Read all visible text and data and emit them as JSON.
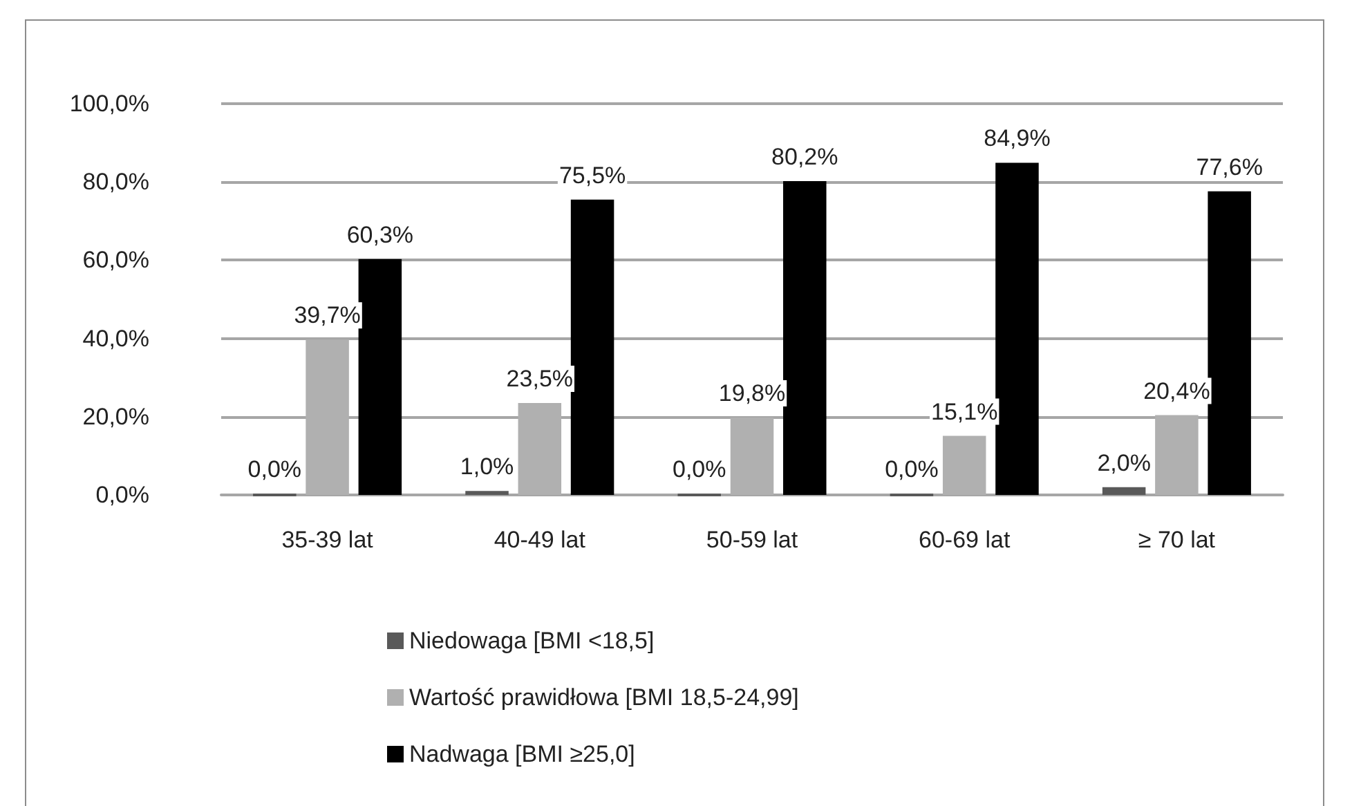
{
  "chart_data": {
    "type": "bar",
    "categories": [
      "35-39 lat",
      "40-49 lat",
      "50-59 lat",
      "60-69 lat",
      "≥ 70 lat"
    ],
    "series": [
      {
        "name": "Niedowaga [BMI <18,5]",
        "color": "#595959",
        "values": [
          0,
          1,
          0,
          0,
          2
        ],
        "value_labels": [
          "0,0%",
          "1,0%",
          "0,0%",
          "0,0%",
          "2,0%"
        ]
      },
      {
        "name": "Wartość prawidłowa [BMI 18,5-24,99]",
        "color": "#b0b0b0",
        "values": [
          39.7,
          23.5,
          19.8,
          15.1,
          20.4
        ],
        "value_labels": [
          "39,7%",
          "23,5%",
          "19,8%",
          "15,1%",
          "20,4%"
        ]
      },
      {
        "name": "Nadwaga [BMI ≥25,0]",
        "color": "#000000",
        "values": [
          60.3,
          75.5,
          80.2,
          84.9,
          77.6
        ],
        "value_labels": [
          "60,3%",
          "75,5%",
          "80,2%",
          "84,9%",
          "77,6%"
        ]
      }
    ],
    "ylim": [
      0,
      100
    ],
    "yticks": [
      {
        "value": 0,
        "label": "0,0%"
      },
      {
        "value": 20,
        "label": "20,0%"
      },
      {
        "value": 40,
        "label": "40,0%"
      },
      {
        "value": 60,
        "label": "60,0%"
      },
      {
        "value": 80,
        "label": "80,0%"
      },
      {
        "value": 100,
        "label": "100,0%"
      }
    ],
    "grid": "y",
    "legend": "bottom"
  }
}
